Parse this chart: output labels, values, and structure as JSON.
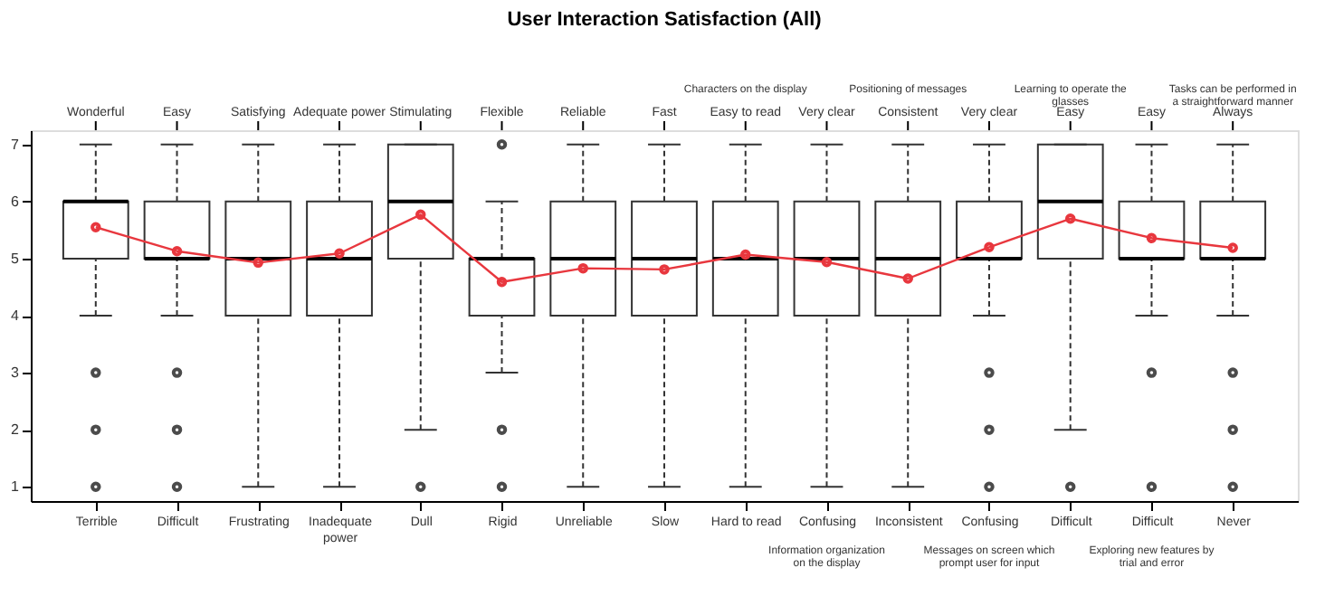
{
  "chart_data": {
    "type": "box",
    "title": "User Interaction Satisfaction (All)",
    "categories": [
      "Terrible",
      "Difficult",
      "Frustrating",
      "Inadequate power",
      "Dull",
      "Rigid",
      "Unreliable",
      "Slow",
      "Hard to read",
      "Confusing",
      "Inconsistent",
      "Confusing",
      "Difficult",
      "Difficult",
      "Never"
    ],
    "annotations": [
      "Wonderful",
      "Easy",
      "Satisfying",
      "Adequate power",
      "Stimulating",
      "Flexible",
      "Reliable",
      "Fast",
      "Easy to read",
      "Very clear",
      "Consistent",
      "Very clear",
      "Easy",
      "Easy",
      "Always",
      "Characters on the display",
      "Positioning of messages",
      "Learning to operate the glasses",
      "Tasks can be performed in a straightforward manner",
      "Information organization on the display",
      "Messages on screen which prompt user for input",
      "Exploring new features by trial and error"
    ],
    "boxes": [
      {
        "low": 4,
        "q1": 5,
        "median": 6,
        "q3": 6,
        "high": 7,
        "outliers": [
          3,
          2,
          1
        ]
      },
      {
        "low": 4,
        "q1": 5,
        "median": 5,
        "q3": 6,
        "high": 7,
        "outliers": [
          3,
          2,
          1
        ]
      },
      {
        "low": 1,
        "q1": 4,
        "median": 5,
        "q3": 6,
        "high": 7
      },
      {
        "low": 1,
        "q1": 4,
        "median": 5,
        "q3": 6,
        "high": 7
      },
      {
        "low": 2,
        "q1": 5,
        "median": 6,
        "q3": 7,
        "high": 7,
        "outliers": [
          1
        ]
      },
      {
        "low": 3,
        "q1": 4,
        "median": 5,
        "q3": 5,
        "high": 6,
        "outliers": [
          7,
          2,
          1
        ]
      },
      {
        "low": 1,
        "q1": 4,
        "median": 5,
        "q3": 6,
        "high": 7
      },
      {
        "low": 1,
        "q1": 4,
        "median": 5,
        "q3": 6,
        "high": 7
      },
      {
        "low": 1,
        "q1": 4,
        "median": 5,
        "q3": 6,
        "high": 7
      },
      {
        "low": 1,
        "q1": 4,
        "median": 5,
        "q3": 6,
        "high": 7
      },
      {
        "low": 1,
        "q1": 4,
        "median": 5,
        "q3": 6,
        "high": 7
      },
      {
        "low": 4,
        "q1": 5,
        "median": 5,
        "q3": 6,
        "high": 7,
        "outliers": [
          3,
          2,
          1
        ]
      },
      {
        "low": 2,
        "q1": 5,
        "median": 6,
        "q3": 7,
        "high": 7,
        "outliers": [
          1
        ]
      },
      {
        "low": 4,
        "q1": 5,
        "median": 5,
        "q3": 6,
        "high": 7,
        "outliers": [
          3,
          1
        ]
      },
      {
        "low": 4,
        "q1": 5,
        "median": 5,
        "q3": 6,
        "high": 7,
        "outliers": [
          3,
          2,
          1
        ]
      }
    ],
    "series": [
      {
        "type": "line",
        "color": "#e8373e",
        "values": [
          5.55,
          5.13,
          4.93,
          5.09,
          5.77,
          4.59,
          4.83,
          4.81,
          5.07,
          4.94,
          4.65,
          5.2,
          5.7,
          5.36,
          5.19
        ]
      }
    ],
    "color": "#333333",
    "ylim": [
      0.75,
      7.25
    ],
    "yticks": [
      1,
      2,
      3,
      4,
      5,
      6,
      7
    ],
    "grid": false,
    "marker": "circle"
  }
}
